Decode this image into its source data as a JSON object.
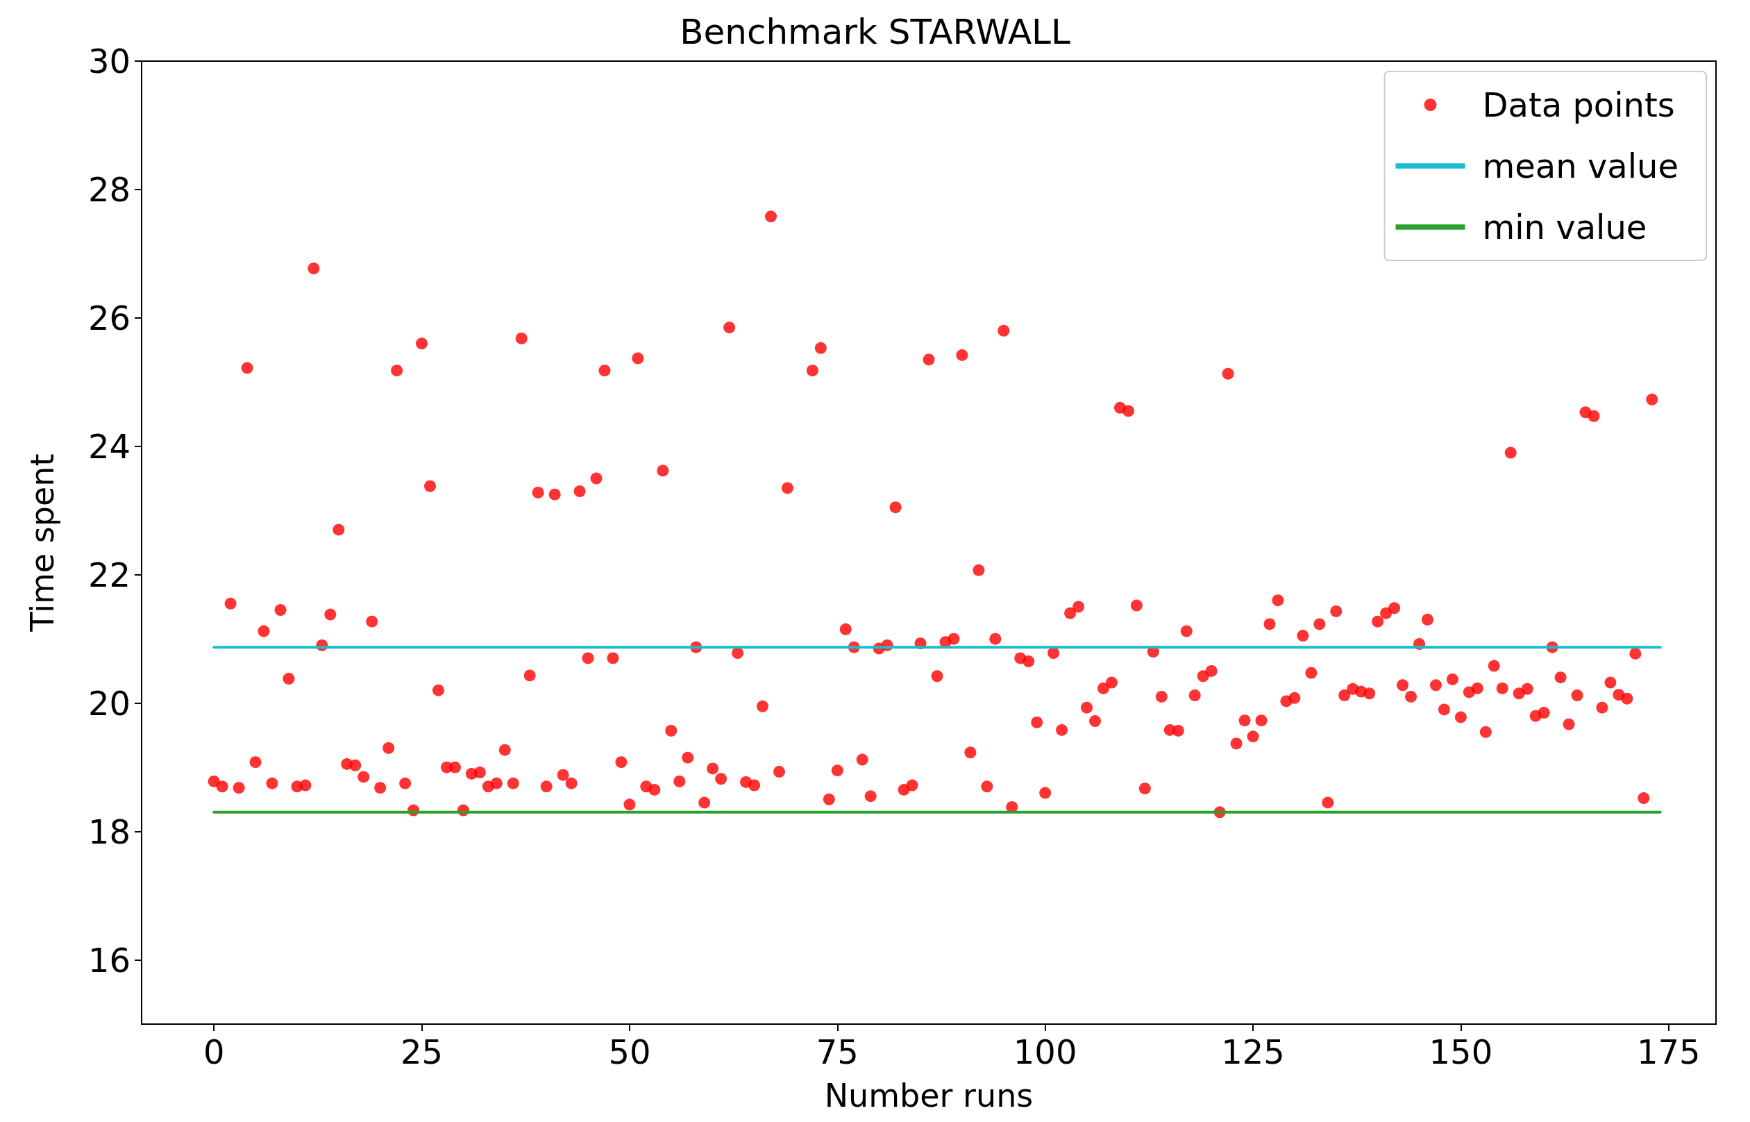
{
  "chart_data": {
    "type": "scatter",
    "title": "Benchmark STARWALL",
    "xlabel": "Number runs",
    "ylabel": "Time spent",
    "xlim": [
      -8.7,
      180.7
    ],
    "xticks": [
      0,
      25,
      50,
      75,
      100,
      125,
      150,
      175
    ],
    "ylim": [
      15,
      30
    ],
    "yticks": [
      16,
      18,
      20,
      22,
      24,
      26,
      28,
      30
    ],
    "grid": false,
    "legend": "top right",
    "marker": "circle",
    "series": [
      {
        "name": "Data points",
        "type": "scatter",
        "color": "#ff0000",
        "x": [
          0,
          1,
          2,
          3,
          4,
          5,
          6,
          7,
          8,
          9,
          10,
          11,
          12,
          13,
          14,
          15,
          16,
          17,
          18,
          19,
          20,
          21,
          22,
          23,
          24,
          25,
          26,
          27,
          28,
          29,
          30,
          31,
          32,
          33,
          34,
          35,
          36,
          37,
          38,
          39,
          40,
          41,
          42,
          43,
          44,
          45,
          46,
          47,
          48,
          49,
          50,
          51,
          52,
          53,
          54,
          55,
          56,
          57,
          58,
          59,
          60,
          61,
          62,
          63,
          64,
          65,
          66,
          67,
          68,
          69,
          72,
          73,
          74,
          75,
          76,
          77,
          78,
          79,
          80,
          81,
          82,
          83,
          84,
          85,
          86,
          87,
          88,
          89,
          90,
          91,
          92,
          93,
          94,
          95,
          96,
          97,
          98,
          99,
          100,
          101,
          102,
          103,
          104,
          105,
          106,
          107,
          108,
          109,
          110,
          111,
          112,
          113,
          114,
          115,
          116,
          117,
          118,
          119,
          120,
          121,
          122,
          123,
          124,
          125,
          126,
          127,
          128,
          129,
          130,
          131,
          132,
          133,
          134,
          135,
          136,
          137,
          138,
          139,
          140,
          141,
          142,
          143,
          144,
          145,
          146,
          147,
          148,
          149,
          150,
          151,
          152,
          153,
          154,
          155,
          156,
          157,
          158,
          159,
          160,
          161,
          162,
          163,
          164,
          165,
          166,
          167,
          168,
          169,
          170,
          171,
          172,
          173
        ],
        "values": [
          18.78,
          18.7,
          21.55,
          18.68,
          25.22,
          19.08,
          21.12,
          18.75,
          21.45,
          20.38,
          18.7,
          18.72,
          26.77,
          20.9,
          21.38,
          22.7,
          19.05,
          19.03,
          18.85,
          21.27,
          18.68,
          19.3,
          25.18,
          18.75,
          18.33,
          25.6,
          23.38,
          20.2,
          19.0,
          19.0,
          18.33,
          18.9,
          18.92,
          18.7,
          18.75,
          19.27,
          18.75,
          25.68,
          20.43,
          23.28,
          18.7,
          23.25,
          18.88,
          18.75,
          23.3,
          20.7,
          23.5,
          25.18,
          20.7,
          19.08,
          18.42,
          25.37,
          18.7,
          18.65,
          23.62,
          19.57,
          18.78,
          19.15,
          20.87,
          18.45,
          18.98,
          18.82,
          25.85,
          20.78,
          18.77,
          18.72,
          19.95,
          27.58,
          18.93,
          23.35,
          25.18,
          25.53,
          18.5,
          18.95,
          21.15,
          20.87,
          19.12,
          18.55,
          20.85,
          20.9,
          23.05,
          18.65,
          18.72,
          20.93,
          25.35,
          20.42,
          20.95,
          21.0,
          25.42,
          19.23,
          22.07,
          18.7,
          21.0,
          25.8,
          18.38,
          20.7,
          20.65,
          19.7,
          18.6,
          20.78,
          19.58,
          21.4,
          21.5,
          19.93,
          19.72,
          20.23,
          20.32,
          24.6,
          24.55,
          21.52,
          18.67,
          20.8,
          20.1,
          19.58,
          19.57,
          21.12,
          20.12,
          20.42,
          20.5,
          18.3,
          25.13,
          19.37,
          19.73,
          19.48,
          19.73,
          21.23,
          21.6,
          20.03,
          20.08,
          21.05,
          20.47,
          21.23,
          18.45,
          21.43,
          20.12,
          20.22,
          20.18,
          20.15,
          21.27,
          21.4,
          21.48,
          20.28,
          20.1,
          20.92,
          21.3,
          20.28,
          19.9,
          20.37,
          19.78,
          20.17,
          20.23,
          19.55,
          20.58,
          20.23,
          23.9,
          20.15,
          20.22,
          19.8,
          19.85,
          20.87,
          20.4,
          19.67,
          20.12,
          24.53,
          24.47,
          19.93,
          20.32,
          20.13,
          20.07,
          20.77,
          18.52,
          24.73
        ]
      },
      {
        "name": "mean value",
        "type": "line",
        "marker": "none",
        "color": "#17becf",
        "x": [
          0,
          174
        ],
        "values": [
          20.87,
          20.87
        ]
      },
      {
        "name": "min value",
        "type": "line",
        "marker": "none",
        "color": "#2ca02c",
        "x": [
          0,
          174
        ],
        "values": [
          18.3,
          18.3
        ]
      }
    ]
  }
}
